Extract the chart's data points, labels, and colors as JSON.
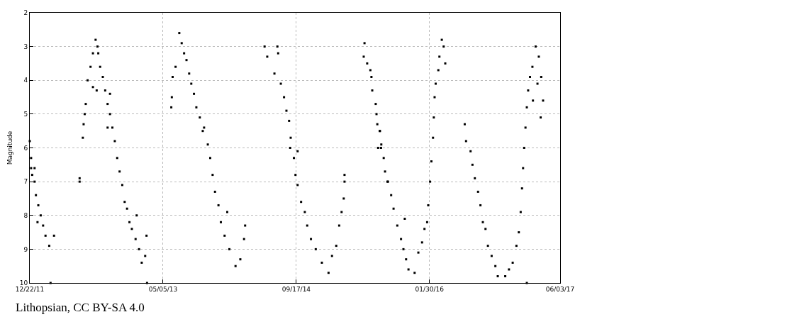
{
  "chart_data": {
    "type": "scatter",
    "ylabel": "Magnitude",
    "marker": "square",
    "grid": true,
    "annotations": [
      "Lithopsian, CC BY-SA 4.0"
    ],
    "xlim": [
      "2011-12-22",
      "2017-06-03"
    ],
    "xticks": [
      {
        "value": "2011-12-22",
        "label": "12/22/11"
      },
      {
        "value": "2013-05-05",
        "label": "05/05/13"
      },
      {
        "value": "2014-09-17",
        "label": "09/17/14"
      },
      {
        "value": "2016-01-30",
        "label": "01/30/16"
      },
      {
        "value": "2017-06-03",
        "label": "06/03/17"
      }
    ],
    "ylim": [
      10,
      2
    ],
    "yticks": [
      2,
      3,
      4,
      5,
      6,
      7,
      8,
      9,
      10
    ],
    "series": [
      {
        "color": "#000000",
        "x": [
          "2011-12-22",
          "2011-12-27",
          "2011-12-27",
          "2011-12-31",
          "2012-01-09",
          "2012-01-09",
          "2012-01-14",
          "2012-01-20",
          "2012-01-23",
          "2012-02-01",
          "2012-02-10",
          "2012-02-19",
          "2012-03-04",
          "2012-03-09",
          "2012-03-22",
          "2012-06-26",
          "2012-06-26",
          "2012-07-08",
          "2012-07-11",
          "2012-07-15",
          "2012-07-19",
          "2012-07-26",
          "2012-08-06",
          "2012-08-15",
          "2012-08-15",
          "2012-08-25",
          "2012-08-29",
          "2012-09-01",
          "2012-09-04",
          "2012-09-11",
          "2012-09-21",
          "2012-09-30",
          "2012-10-09",
          "2012-10-09",
          "2012-10-18",
          "2012-10-18",
          "2012-10-27",
          "2012-11-05",
          "2012-11-14",
          "2012-11-23",
          "2012-12-03",
          "2012-12-12",
          "2012-12-21",
          "2012-12-30",
          "2013-01-08",
          "2013-01-22",
          "2013-01-26",
          "2013-02-04",
          "2013-02-14",
          "2013-02-27",
          "2013-03-04",
          "2013-03-06",
          "2013-06-05",
          "2013-06-07",
          "2013-06-10",
          "2013-06-21",
          "2013-07-05",
          "2013-07-14",
          "2013-07-23",
          "2013-08-01",
          "2013-08-11",
          "2013-08-19",
          "2013-08-29",
          "2013-09-07",
          "2013-09-20",
          "2013-10-01",
          "2013-10-06",
          "2013-10-20",
          "2013-10-29",
          "2013-11-07",
          "2013-11-16",
          "2013-11-29",
          "2013-12-08",
          "2013-12-22",
          "2014-01-01",
          "2014-01-09",
          "2014-02-01",
          "2014-02-19",
          "2014-03-05",
          "2014-03-09",
          "2014-05-21",
          "2014-05-31",
          "2014-06-27",
          "2014-07-08",
          "2014-07-11",
          "2014-07-21",
          "2014-08-02",
          "2014-08-11",
          "2014-08-21",
          "2014-08-25",
          "2014-08-27",
          "2014-09-08",
          "2014-09-14",
          "2014-09-22",
          "2014-09-22",
          "2014-10-05",
          "2014-10-19",
          "2014-10-28",
          "2014-11-11",
          "2014-11-29",
          "2014-12-22",
          "2015-01-16",
          "2015-01-29",
          "2015-02-14",
          "2015-02-25",
          "2015-03-06",
          "2015-03-14",
          "2015-03-17",
          "2015-03-17",
          "2015-05-28",
          "2015-05-31",
          "2015-06-10",
          "2015-06-22",
          "2015-06-26",
          "2015-06-29",
          "2015-07-12",
          "2015-07-15",
          "2015-07-18",
          "2015-07-21",
          "2015-07-27",
          "2015-07-28",
          "2015-08-01",
          "2015-08-02",
          "2015-08-11",
          "2015-08-16",
          "2015-08-25",
          "2015-08-27",
          "2015-09-08",
          "2015-09-17",
          "2015-10-01",
          "2015-10-15",
          "2015-10-24",
          "2015-10-29",
          "2015-11-03",
          "2015-11-12",
          "2015-12-05",
          "2015-12-19",
          "2016-01-02",
          "2016-01-11",
          "2016-01-21",
          "2016-01-25",
          "2016-02-01",
          "2016-02-06",
          "2016-02-12",
          "2016-02-15",
          "2016-02-18",
          "2016-02-22",
          "2016-03-03",
          "2016-03-07",
          "2016-03-16",
          "2016-03-23",
          "2016-03-29",
          "2016-06-10",
          "2016-06-15",
          "2016-07-02",
          "2016-07-09",
          "2016-07-18",
          "2016-07-30",
          "2016-08-08",
          "2016-08-17",
          "2016-08-27",
          "2016-09-05",
          "2016-09-19",
          "2016-10-03",
          "2016-10-12",
          "2016-11-09",
          "2016-11-23",
          "2016-12-07",
          "2016-12-21",
          "2016-12-30",
          "2017-01-06",
          "2017-01-11",
          "2017-01-15",
          "2017-01-19",
          "2017-01-24",
          "2017-01-29",
          "2017-01-29",
          "2017-02-03",
          "2017-02-10",
          "2017-02-19",
          "2017-02-21",
          "2017-03-03",
          "2017-03-10",
          "2017-03-15",
          "2017-03-22",
          "2017-03-24",
          "2017-03-31"
        ],
        "values": [
          5.8,
          6.3,
          6.6,
          6.8,
          7.0,
          6.6,
          7.4,
          8.2,
          7.7,
          8.0,
          8.3,
          8.6,
          8.9,
          10.0,
          8.6,
          6.9,
          7.0,
          5.7,
          5.3,
          5.0,
          4.7,
          4.0,
          3.6,
          3.2,
          4.2,
          2.8,
          4.3,
          3.0,
          3.2,
          3.6,
          3.9,
          4.3,
          4.7,
          5.4,
          5.0,
          4.4,
          5.4,
          5.8,
          6.3,
          6.7,
          7.1,
          7.6,
          7.8,
          8.2,
          8.4,
          8.7,
          8.0,
          9.0,
          9.4,
          9.2,
          8.6,
          10.0,
          4.8,
          4.5,
          3.9,
          3.6,
          2.6,
          2.9,
          3.2,
          3.4,
          3.8,
          4.1,
          4.4,
          4.8,
          5.1,
          5.5,
          5.4,
          5.9,
          6.3,
          6.8,
          7.3,
          7.7,
          8.2,
          8.6,
          7.9,
          9.0,
          9.5,
          9.3,
          8.7,
          8.3,
          3.0,
          3.3,
          3.8,
          3.0,
          3.2,
          4.1,
          4.5,
          4.9,
          5.2,
          6.0,
          5.7,
          6.3,
          6.8,
          7.1,
          6.1,
          7.6,
          7.9,
          8.3,
          8.7,
          9.0,
          9.4,
          9.7,
          9.2,
          8.9,
          8.3,
          7.9,
          7.5,
          7.0,
          6.8,
          3.3,
          2.9,
          3.5,
          3.7,
          3.9,
          4.3,
          4.7,
          5.0,
          5.3,
          6.0,
          5.5,
          5.5,
          6.0,
          5.9,
          6.3,
          6.7,
          7.0,
          7.0,
          7.4,
          7.8,
          8.3,
          8.7,
          9.0,
          8.1,
          9.3,
          9.6,
          9.7,
          9.1,
          8.8,
          8.4,
          8.2,
          7.7,
          7.0,
          6.4,
          5.7,
          5.1,
          4.5,
          4.1,
          3.7,
          3.3,
          2.8,
          3.0,
          3.5,
          5.3,
          5.8,
          6.1,
          6.5,
          6.9,
          7.3,
          7.7,
          8.2,
          8.4,
          8.9,
          9.2,
          9.5,
          9.8,
          9.8,
          9.6,
          9.4,
          8.9,
          8.5,
          7.9,
          7.2,
          6.6,
          6.0,
          5.4,
          4.8,
          10.0,
          4.3,
          3.9,
          3.6,
          4.6,
          3.0,
          4.1,
          3.3,
          5.1,
          3.9,
          4.6
        ]
      }
    ]
  }
}
